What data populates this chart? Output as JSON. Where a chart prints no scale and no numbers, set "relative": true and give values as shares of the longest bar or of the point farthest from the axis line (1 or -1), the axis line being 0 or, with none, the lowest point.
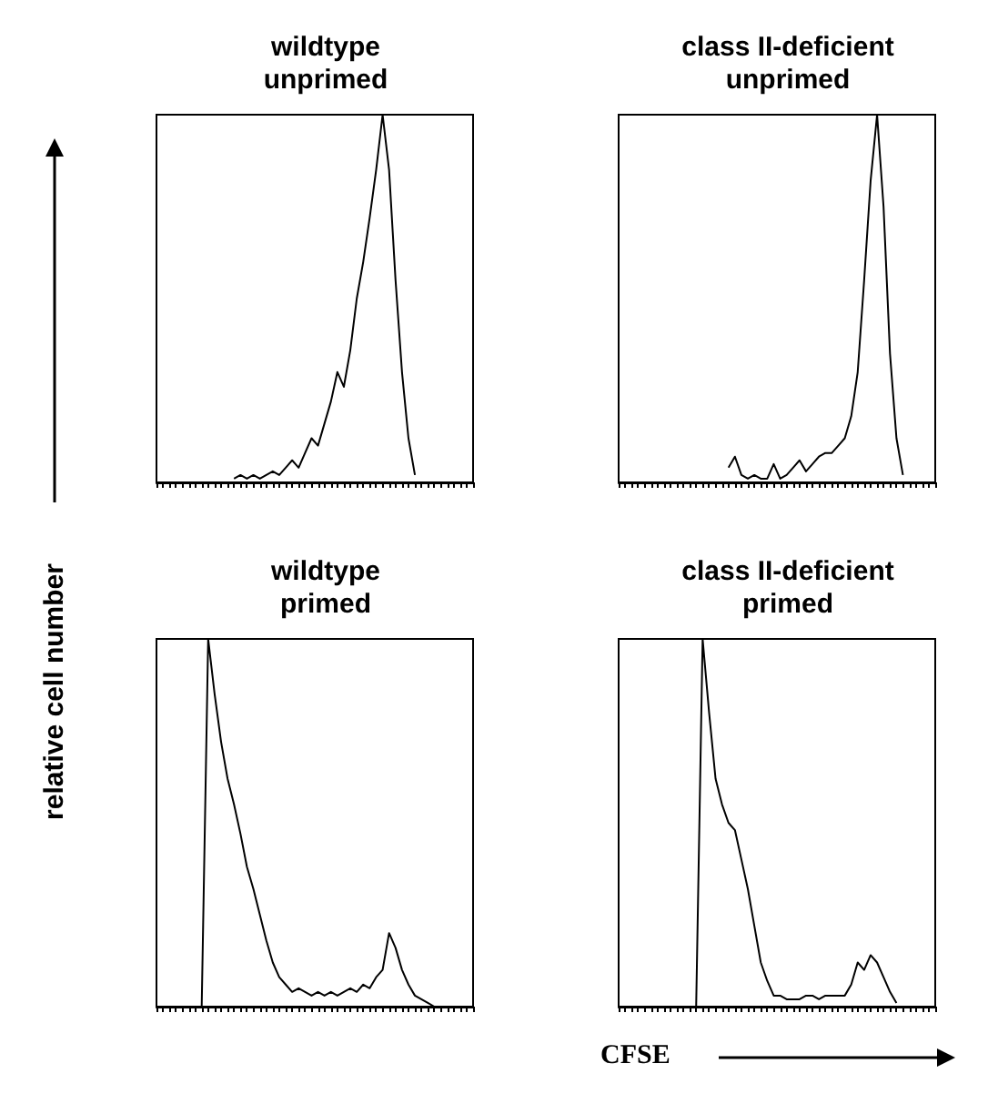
{
  "chart_data": [
    {
      "type": "line",
      "title": "wildtype\nunprimed",
      "relative": true,
      "ylabel": "relative cell number",
      "categories": [
        null,
        null,
        null,
        null,
        null,
        null,
        null,
        null,
        null,
        null,
        null,
        null,
        null,
        null,
        null,
        null,
        null,
        null,
        null,
        null,
        null,
        null,
        null,
        null,
        null,
        null,
        null,
        null,
        null,
        null,
        null,
        null,
        null,
        null,
        null,
        null,
        null,
        null,
        null,
        null,
        null,
        null,
        null,
        null,
        null,
        null,
        null,
        null,
        null,
        null
      ],
      "series": [
        {
          "color": "#000000",
          "values": [
            null,
            null,
            null,
            null,
            null,
            null,
            null,
            null,
            null,
            null,
            null,
            null,
            0.01,
            0.02,
            0.01,
            0.02,
            0.01,
            0.02,
            0.03,
            0.02,
            0.04,
            0.06,
            0.04,
            0.08,
            0.12,
            0.1,
            0.16,
            0.22,
            0.3,
            0.26,
            0.36,
            0.5,
            0.6,
            0.72,
            0.85,
            1.0,
            0.85,
            0.55,
            0.3,
            0.12,
            0.02,
            null,
            null,
            null,
            null,
            null,
            null,
            null,
            null,
            null
          ]
        }
      ]
    },
    {
      "type": "line",
      "title": "class II-deficient\nunprimed",
      "relative": true,
      "categories": [
        null,
        null,
        null,
        null,
        null,
        null,
        null,
        null,
        null,
        null,
        null,
        null,
        null,
        null,
        null,
        null,
        null,
        null,
        null,
        null,
        null,
        null,
        null,
        null,
        null,
        null,
        null,
        null,
        null,
        null,
        null,
        null,
        null,
        null,
        null,
        null,
        null,
        null,
        null,
        null,
        null,
        null,
        null,
        null,
        null,
        null,
        null,
        null,
        null,
        null
      ],
      "series": [
        {
          "color": "#000000",
          "values": [
            null,
            null,
            null,
            null,
            null,
            null,
            null,
            null,
            null,
            null,
            null,
            null,
            null,
            null,
            null,
            null,
            null,
            0.04,
            0.07,
            0.02,
            0.01,
            0.02,
            0.01,
            0.01,
            0.05,
            0.01,
            0.02,
            0.04,
            0.06,
            0.03,
            0.05,
            0.07,
            0.08,
            0.08,
            0.1,
            0.12,
            0.18,
            0.3,
            0.55,
            0.82,
            1.0,
            0.75,
            0.35,
            0.12,
            0.02,
            null,
            null,
            null,
            null,
            null
          ]
        }
      ]
    },
    {
      "type": "line",
      "title": "wildtype\nprimed",
      "relative": true,
      "categories": [
        null,
        null,
        null,
        null,
        null,
        null,
        null,
        null,
        null,
        null,
        null,
        null,
        null,
        null,
        null,
        null,
        null,
        null,
        null,
        null,
        null,
        null,
        null,
        null,
        null,
        null,
        null,
        null,
        null,
        null,
        null,
        null,
        null,
        null,
        null,
        null,
        null,
        null,
        null,
        null,
        null,
        null,
        null,
        null,
        null,
        null,
        null,
        null,
        null,
        null
      ],
      "series": [
        {
          "color": "#000000",
          "values": [
            null,
            null,
            null,
            null,
            null,
            null,
            null,
            0,
            1.0,
            0.85,
            0.72,
            0.62,
            0.55,
            0.47,
            0.38,
            0.32,
            0.25,
            0.18,
            0.12,
            0.08,
            0.06,
            0.04,
            0.05,
            0.04,
            0.03,
            0.04,
            0.03,
            0.04,
            0.03,
            0.04,
            0.05,
            0.04,
            0.06,
            0.05,
            0.08,
            0.1,
            0.2,
            0.16,
            0.1,
            0.06,
            0.03,
            0.02,
            0.01,
            0,
            null,
            null,
            null,
            null,
            null,
            null
          ]
        }
      ]
    },
    {
      "type": "line",
      "title": "class II-deficient\nprimed",
      "relative": true,
      "xlabel": "CFSE",
      "categories": [
        null,
        null,
        null,
        null,
        null,
        null,
        null,
        null,
        null,
        null,
        null,
        null,
        null,
        null,
        null,
        null,
        null,
        null,
        null,
        null,
        null,
        null,
        null,
        null,
        null,
        null,
        null,
        null,
        null,
        null,
        null,
        null,
        null,
        null,
        null,
        null,
        null,
        null,
        null,
        null,
        null,
        null,
        null,
        null,
        null,
        null,
        null,
        null,
        null,
        null
      ],
      "series": [
        {
          "color": "#000000",
          "values": [
            null,
            null,
            null,
            null,
            null,
            null,
            null,
            null,
            null,
            null,
            null,
            null,
            0,
            1.0,
            0.8,
            0.62,
            0.55,
            0.5,
            0.48,
            0.4,
            0.32,
            0.22,
            0.12,
            0.07,
            0.03,
            0.03,
            0.02,
            0.02,
            0.02,
            0.03,
            0.03,
            0.02,
            0.03,
            0.03,
            0.03,
            0.03,
            0.06,
            0.12,
            0.1,
            0.14,
            0.12,
            0.08,
            0.04,
            0.01,
            null,
            null,
            null,
            null,
            null,
            null
          ]
        }
      ]
    }
  ]
}
